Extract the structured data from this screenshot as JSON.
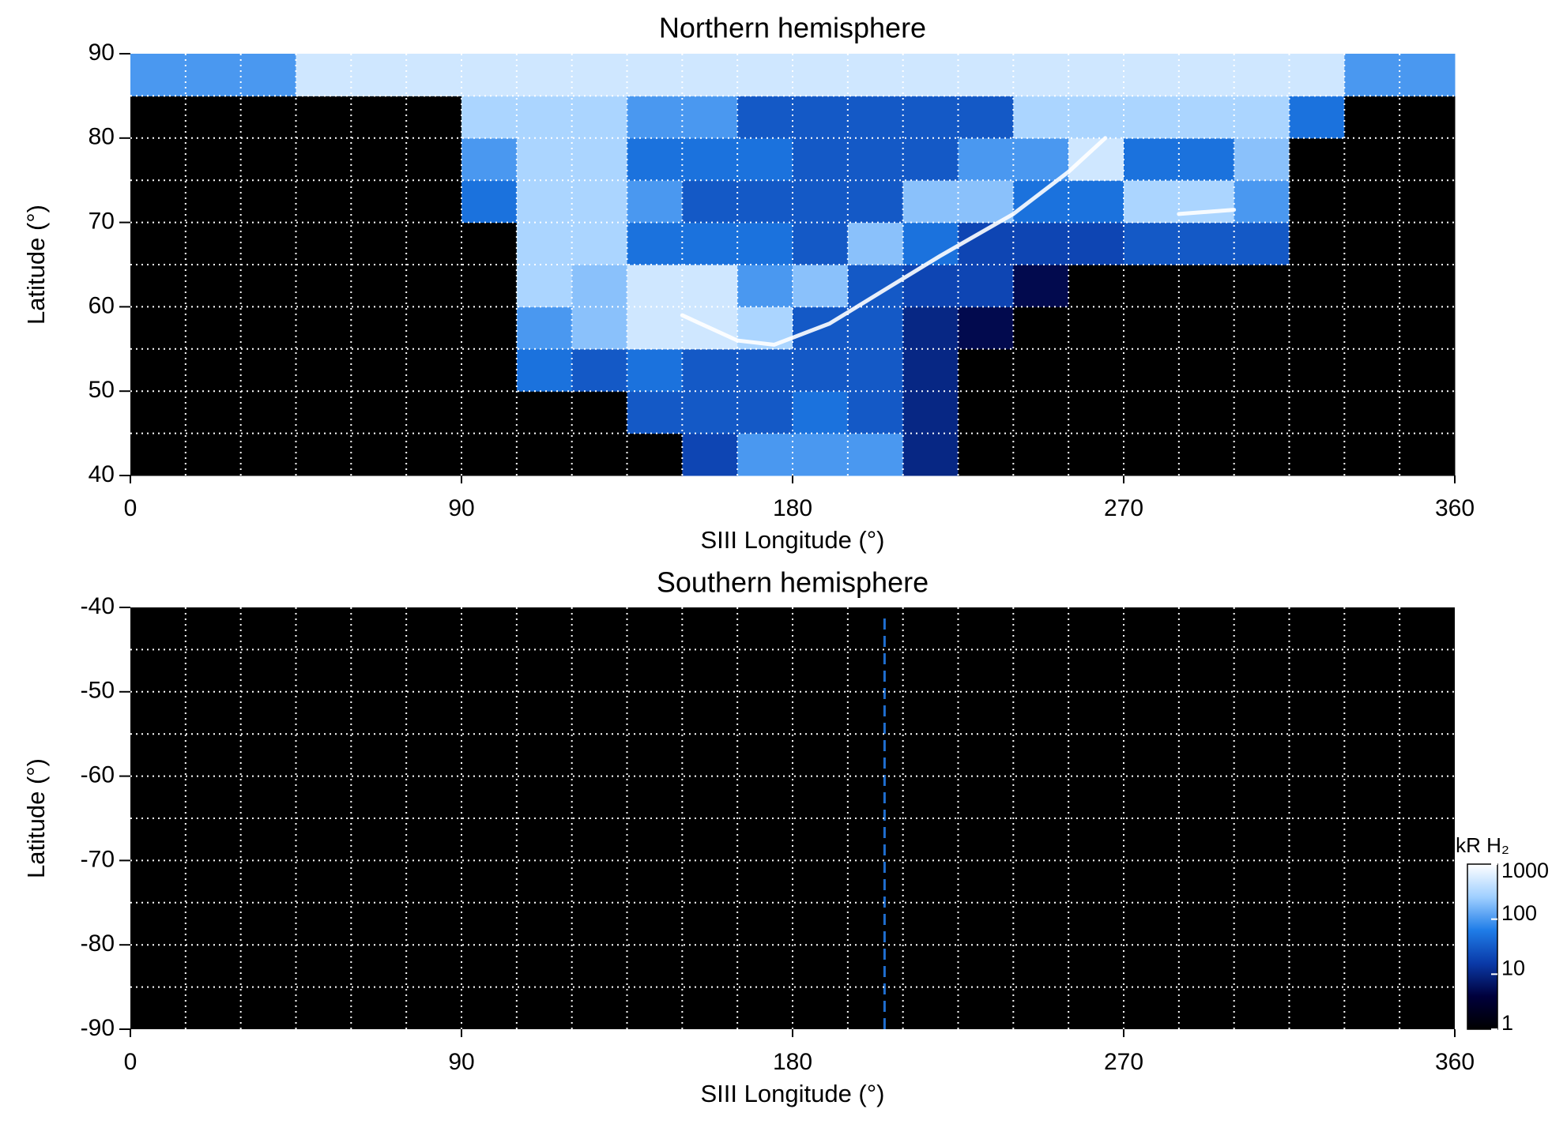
{
  "chart_data": [
    {
      "type": "heatmap",
      "title": "Northern hemisphere",
      "xlabel": "SIII Longitude (°)",
      "ylabel": "Latitude (°)",
      "xlim": [
        0,
        360
      ],
      "xticks": [
        0,
        90,
        180,
        270,
        360
      ],
      "ylim": [
        40,
        90
      ],
      "yticks": [
        40,
        50,
        60,
        70,
        80,
        90
      ],
      "grid": true,
      "xgrid": [
        15,
        30,
        45,
        60,
        75,
        90,
        105,
        120,
        135,
        150,
        165,
        180,
        195,
        210,
        225,
        240,
        255,
        270,
        285,
        300,
        315,
        330,
        345
      ],
      "ygrid": [
        45,
        50,
        55,
        60,
        65,
        70,
        75,
        80,
        85
      ],
      "x_edges": [
        0,
        15,
        30,
        45,
        60,
        75,
        90,
        105,
        120,
        135,
        150,
        165,
        180,
        195,
        210,
        225,
        240,
        255,
        270,
        285,
        300,
        315,
        330,
        345,
        360
      ],
      "y_edges": [
        40,
        45,
        50,
        55,
        60,
        65,
        70,
        75,
        80,
        85,
        90
      ],
      "z": [
        [
          1,
          1,
          1,
          1,
          1,
          1,
          1,
          1,
          1,
          1,
          20,
          100,
          100,
          100,
          10,
          1,
          1,
          1,
          1,
          1,
          1,
          1,
          1,
          1
        ],
        [
          1,
          1,
          1,
          1,
          1,
          1,
          1,
          1,
          1,
          30,
          30,
          30,
          50,
          30,
          10,
          1,
          1,
          1,
          1,
          1,
          1,
          1,
          1,
          1
        ],
        [
          1,
          1,
          1,
          1,
          1,
          1,
          1,
          50,
          30,
          50,
          30,
          30,
          30,
          30,
          10,
          1,
          1,
          1,
          1,
          1,
          1,
          1,
          1,
          1
        ],
        [
          1,
          1,
          1,
          1,
          1,
          1,
          1,
          100,
          200,
          500,
          500,
          300,
          30,
          30,
          10,
          5,
          1,
          1,
          1,
          1,
          1,
          1,
          1,
          1
        ],
        [
          1,
          1,
          1,
          1,
          1,
          1,
          1,
          300,
          200,
          500,
          500,
          100,
          200,
          30,
          20,
          20,
          5,
          1,
          1,
          1,
          1,
          1,
          1,
          1
        ],
        [
          1,
          1,
          1,
          1,
          1,
          1,
          1,
          300,
          300,
          50,
          50,
          50,
          30,
          200,
          50,
          20,
          20,
          20,
          30,
          30,
          30,
          1,
          1,
          1
        ],
        [
          1,
          1,
          1,
          1,
          1,
          1,
          50,
          300,
          300,
          100,
          30,
          30,
          30,
          30,
          200,
          200,
          50,
          50,
          300,
          300,
          100,
          1,
          1,
          1
        ],
        [
          1,
          1,
          1,
          1,
          1,
          1,
          100,
          300,
          300,
          50,
          50,
          50,
          30,
          30,
          30,
          100,
          100,
          500,
          50,
          50,
          200,
          1,
          1,
          1
        ],
        [
          1,
          1,
          1,
          1,
          1,
          1,
          300,
          300,
          300,
          100,
          100,
          30,
          30,
          30,
          30,
          30,
          300,
          300,
          300,
          300,
          300,
          50,
          1,
          1
        ],
        [
          100,
          100,
          100,
          500,
          500,
          500,
          500,
          500,
          500,
          500,
          500,
          500,
          500,
          500,
          500,
          500,
          500,
          500,
          500,
          500,
          500,
          500,
          100,
          100
        ]
      ],
      "arcs": [
        {
          "color": "#ffffff",
          "x": [
            150,
            165,
            175,
            190,
            205,
            220,
            240,
            255,
            265
          ],
          "y": [
            59,
            56,
            55.5,
            58,
            62,
            66,
            71,
            76,
            80
          ]
        },
        {
          "color": "#ffffff",
          "x": [
            285,
            300
          ],
          "y": [
            71,
            71.5
          ]
        }
      ]
    },
    {
      "type": "heatmap",
      "title": "Southern hemisphere",
      "xlabel": "SIII Longitude (°)",
      "ylabel": "Latitude (°)",
      "xlim": [
        0,
        360
      ],
      "xticks": [
        0,
        90,
        180,
        270,
        360
      ],
      "ylim": [
        -90,
        -40
      ],
      "yticks": [
        -90,
        -80,
        -70,
        -60,
        -50,
        -40
      ],
      "grid": true,
      "xgrid": [
        15,
        30,
        45,
        60,
        75,
        90,
        105,
        120,
        135,
        150,
        165,
        180,
        195,
        210,
        225,
        240,
        255,
        270,
        285,
        300,
        315,
        330,
        345
      ],
      "ygrid": [
        -85,
        -80,
        -75,
        -70,
        -65,
        -60,
        -55,
        -50,
        -45
      ],
      "vlines": [
        {
          "x": 205,
          "color": "#1f6fd0"
        }
      ],
      "colorbar": {
        "title": "kR H₂",
        "range": [
          1,
          1000
        ],
        "ticks": [
          1,
          10,
          100,
          1000
        ],
        "log": true,
        "colors": [
          "#000000",
          "#00003c",
          "#0a3aa8",
          "#1f7de8",
          "#9fcfff",
          "#ffffff"
        ]
      }
    }
  ]
}
